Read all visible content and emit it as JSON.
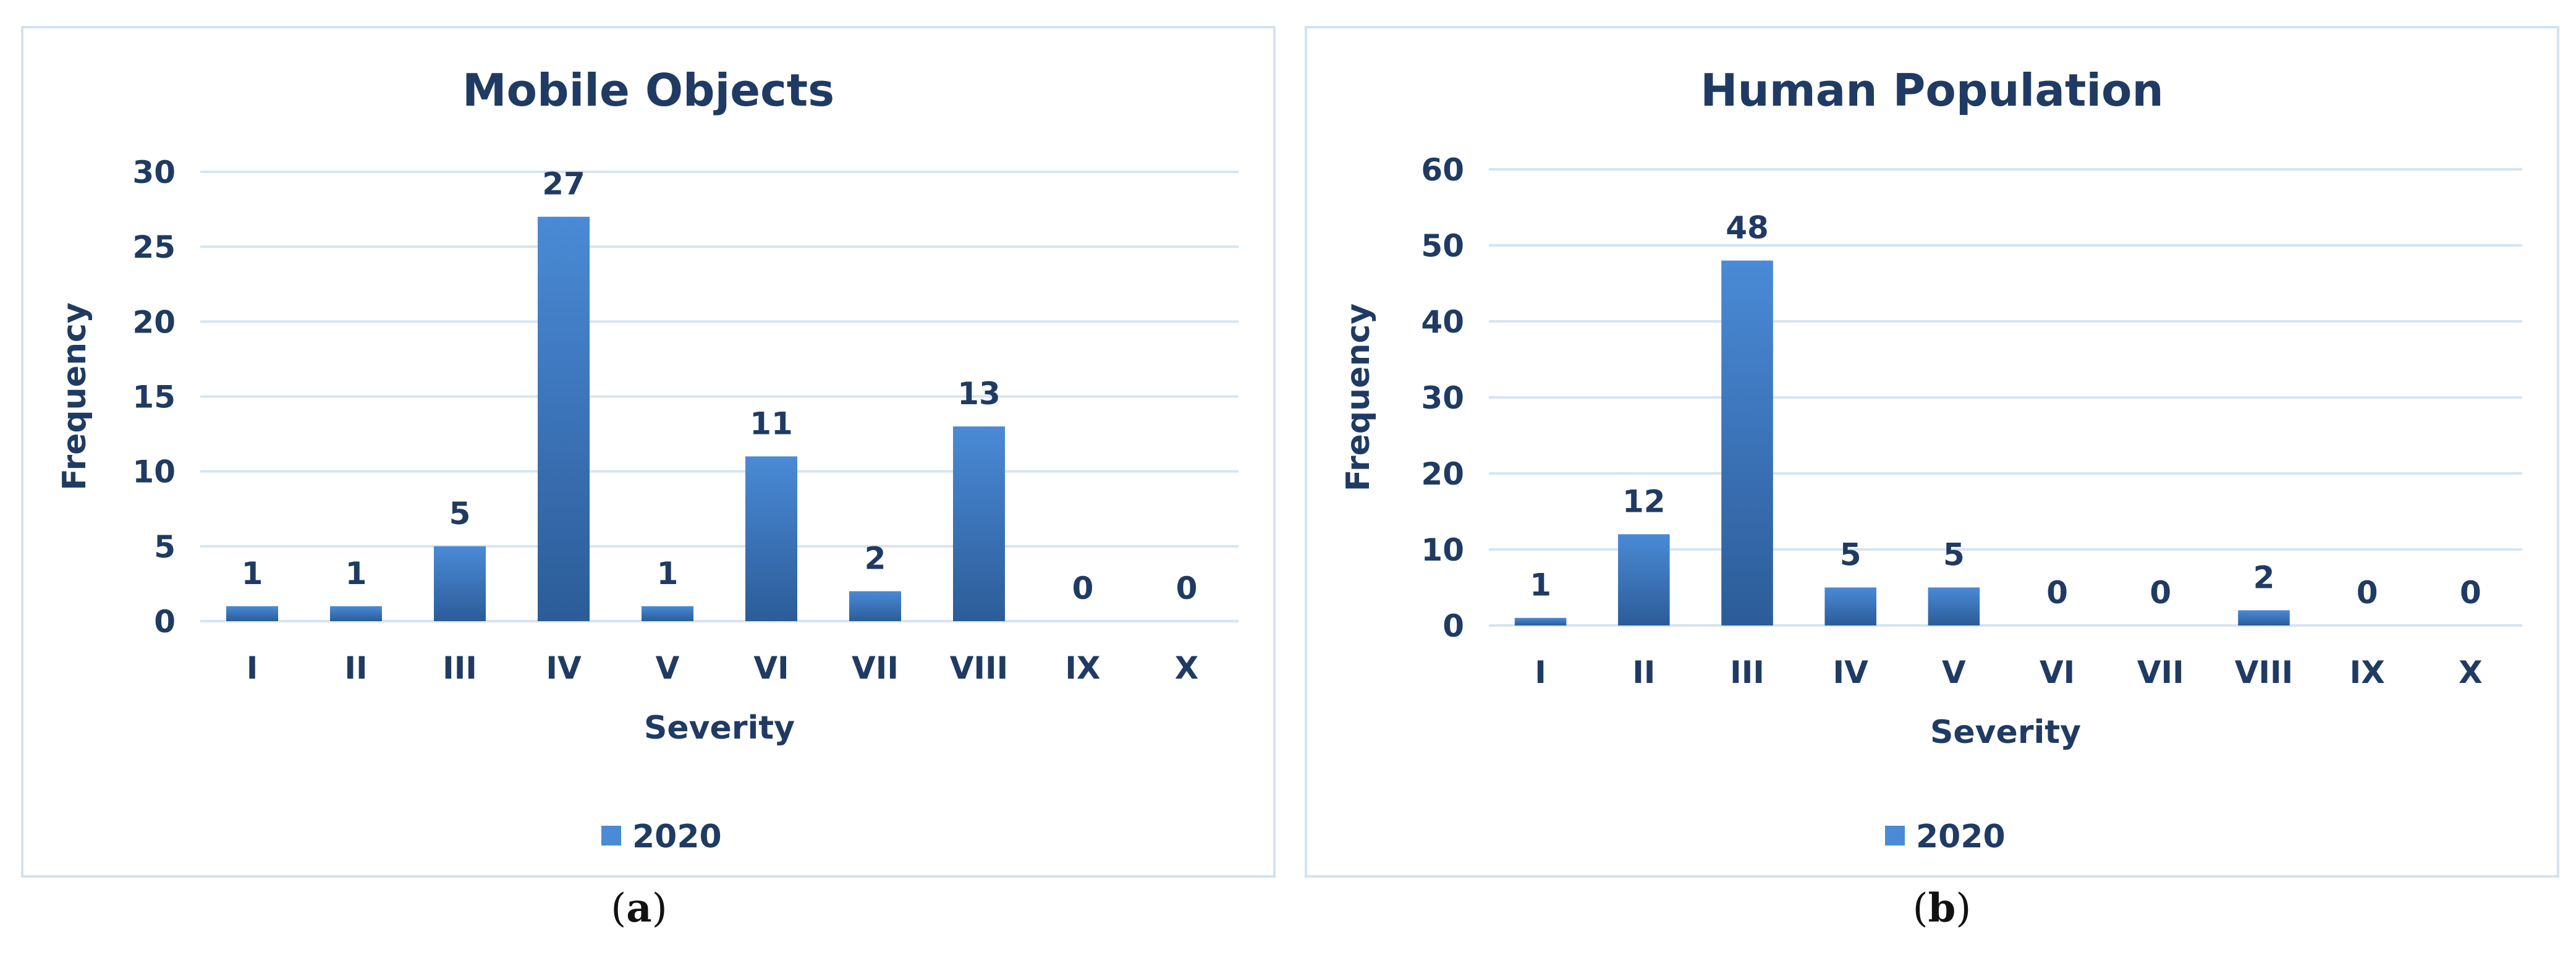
{
  "colors": {
    "bar_top": "#4a8ad6",
    "bar_bottom": "#2c5c99",
    "text": "#1f3b63",
    "grid": "#d6e4f0",
    "panel_border": "#d3e2ef"
  },
  "captions": [
    {
      "open": "(",
      "letter": "a",
      "close": ")"
    },
    {
      "open": "(",
      "letter": "b",
      "close": ")"
    }
  ],
  "chart_data": [
    {
      "type": "bar",
      "title": "Mobile Objects",
      "xlabel": "Severity",
      "ylabel": "Frequency",
      "categories": [
        "I",
        "II",
        "III",
        "IV",
        "V",
        "VI",
        "VII",
        "VIII",
        "IX",
        "X"
      ],
      "series": [
        {
          "name": "2020",
          "values": [
            1,
            1,
            5,
            27,
            1,
            11,
            2,
            13,
            0,
            0
          ]
        }
      ],
      "ylim": [
        0,
        30
      ],
      "yticks": [
        0,
        5,
        10,
        15,
        20,
        25,
        30
      ],
      "grid": true,
      "legend": "bottom",
      "data_labels": true
    },
    {
      "type": "bar",
      "title": "Human Population",
      "xlabel": "Severity",
      "ylabel": "Frequency",
      "categories": [
        "I",
        "II",
        "III",
        "IV",
        "V",
        "VI",
        "VII",
        "VIII",
        "IX",
        "X"
      ],
      "series": [
        {
          "name": "2020",
          "values": [
            1,
            12,
            48,
            5,
            5,
            0,
            0,
            2,
            0,
            0
          ]
        }
      ],
      "ylim": [
        0,
        60
      ],
      "yticks": [
        0,
        10,
        20,
        30,
        40,
        50,
        60
      ],
      "grid": true,
      "legend": "bottom",
      "data_labels": true
    }
  ]
}
